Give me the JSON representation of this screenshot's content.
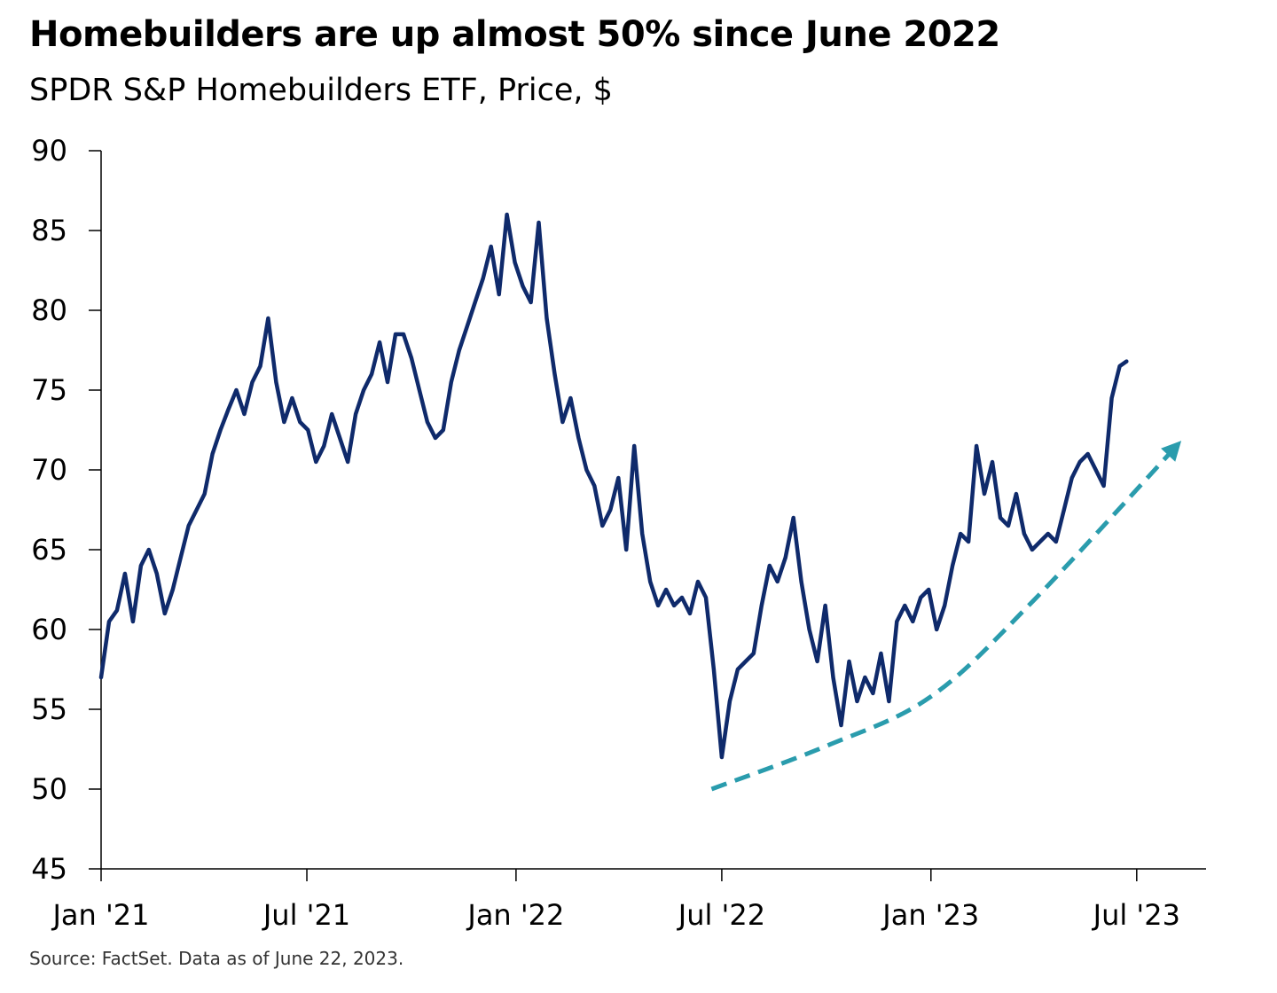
{
  "title": "Homebuilders are up almost 50% since June 2022",
  "subtitle": "SPDR S&P Homebuilders ETF, Price, $",
  "source": "Source: FactSet. Data as of June 22, 2023.",
  "colors": {
    "series": "#0f2a6b",
    "trend_arrow": "#2a9cad",
    "axis": "#000000"
  },
  "chart_data": {
    "type": "line",
    "title": "Homebuilders are up almost 50% since June 2022",
    "subtitle": "SPDR S&P Homebuilders ETF, Price, $",
    "xlabel": "",
    "ylabel": "",
    "ylim": [
      45,
      90
    ],
    "yticks": [
      45,
      50,
      55,
      60,
      65,
      70,
      75,
      80,
      85,
      90
    ],
    "ytick_labels": [
      "45",
      "50",
      "55",
      "60",
      "65",
      "70",
      "75",
      "80",
      "85",
      "90"
    ],
    "x_range": [
      "2021-01-01",
      "2023-08-31"
    ],
    "xticks": [
      "2021-01-01",
      "2021-07-01",
      "2022-01-01",
      "2022-07-01",
      "2023-01-01",
      "2023-07-01"
    ],
    "xtick_labels": [
      "Jan '21",
      "Jul '21",
      "Jan '22",
      "Jul '22",
      "Jan '23",
      "Jul '23"
    ],
    "grid": false,
    "legend": "none",
    "series": [
      {
        "name": "SPDR S&P Homebuilders ETF",
        "x": [
          "2021-01-01",
          "2021-01-08",
          "2021-01-15",
          "2021-01-22",
          "2021-01-29",
          "2021-02-05",
          "2021-02-12",
          "2021-02-19",
          "2021-02-26",
          "2021-03-05",
          "2021-03-12",
          "2021-03-19",
          "2021-03-26",
          "2021-04-02",
          "2021-04-09",
          "2021-04-16",
          "2021-04-23",
          "2021-04-30",
          "2021-05-07",
          "2021-05-14",
          "2021-05-21",
          "2021-05-28",
          "2021-06-04",
          "2021-06-11",
          "2021-06-18",
          "2021-06-25",
          "2021-07-02",
          "2021-07-09",
          "2021-07-16",
          "2021-07-23",
          "2021-07-30",
          "2021-08-06",
          "2021-08-13",
          "2021-08-20",
          "2021-08-27",
          "2021-09-03",
          "2021-09-10",
          "2021-09-17",
          "2021-09-24",
          "2021-10-01",
          "2021-10-08",
          "2021-10-15",
          "2021-10-22",
          "2021-10-29",
          "2021-11-05",
          "2021-11-12",
          "2021-11-19",
          "2021-11-26",
          "2021-12-03",
          "2021-12-10",
          "2021-12-17",
          "2021-12-24",
          "2021-12-31",
          "2022-01-07",
          "2022-01-14",
          "2022-01-21",
          "2022-01-28",
          "2022-02-04",
          "2022-02-11",
          "2022-02-18",
          "2022-02-25",
          "2022-03-04",
          "2022-03-11",
          "2022-03-18",
          "2022-03-25",
          "2022-04-01",
          "2022-04-08",
          "2022-04-15",
          "2022-04-22",
          "2022-04-29",
          "2022-05-06",
          "2022-05-13",
          "2022-05-20",
          "2022-05-27",
          "2022-06-03",
          "2022-06-10",
          "2022-06-17",
          "2022-06-24",
          "2022-07-01",
          "2022-07-08",
          "2022-07-15",
          "2022-07-22",
          "2022-07-29",
          "2022-08-05",
          "2022-08-12",
          "2022-08-19",
          "2022-08-26",
          "2022-09-02",
          "2022-09-09",
          "2022-09-16",
          "2022-09-23",
          "2022-09-30",
          "2022-10-07",
          "2022-10-14",
          "2022-10-21",
          "2022-10-28",
          "2022-11-04",
          "2022-11-11",
          "2022-11-18",
          "2022-11-25",
          "2022-12-02",
          "2022-12-09",
          "2022-12-16",
          "2022-12-23",
          "2022-12-30",
          "2023-01-06",
          "2023-01-13",
          "2023-01-20",
          "2023-01-27",
          "2023-02-03",
          "2023-02-10",
          "2023-02-17",
          "2023-02-24",
          "2023-03-03",
          "2023-03-10",
          "2023-03-17",
          "2023-03-24",
          "2023-03-31",
          "2023-04-07",
          "2023-04-14",
          "2023-04-21",
          "2023-04-28",
          "2023-05-05",
          "2023-05-12",
          "2023-05-19",
          "2023-05-26",
          "2023-06-02",
          "2023-06-09",
          "2023-06-16",
          "2023-06-22"
        ],
        "values": [
          57.0,
          60.5,
          61.2,
          63.5,
          60.5,
          64.0,
          65.0,
          63.5,
          61.0,
          62.5,
          64.5,
          66.5,
          67.5,
          68.5,
          71.0,
          72.5,
          73.8,
          75.0,
          73.5,
          75.5,
          76.5,
          79.5,
          75.5,
          73.0,
          74.5,
          73.0,
          72.5,
          70.5,
          71.5,
          73.5,
          72.0,
          70.5,
          73.5,
          75.0,
          76.0,
          78.0,
          75.5,
          78.5,
          78.5,
          77.0,
          75.0,
          73.0,
          72.0,
          72.5,
          75.5,
          77.5,
          79.0,
          80.5,
          82.0,
          84.0,
          81.0,
          86.0,
          83.0,
          81.5,
          80.5,
          85.5,
          79.5,
          76.0,
          73.0,
          74.5,
          72.0,
          70.0,
          69.0,
          66.5,
          67.5,
          69.5,
          65.0,
          71.5,
          66.0,
          63.0,
          61.5,
          62.5,
          61.5,
          62.0,
          61.0,
          63.0,
          62.0,
          57.5,
          52.0,
          55.5,
          57.5,
          58.0,
          58.5,
          61.5,
          64.0,
          63.0,
          64.5,
          67.0,
          63.0,
          60.0,
          58.0,
          61.5,
          57.0,
          54.0,
          58.0,
          55.5,
          57.0,
          56.0,
          58.5,
          55.5,
          60.5,
          61.5,
          60.5,
          62.0,
          62.5,
          60.0,
          61.5,
          64.0,
          66.0,
          65.5,
          71.5,
          68.5,
          70.5,
          67.0,
          66.5,
          68.5,
          66.0,
          65.0,
          65.5,
          66.0,
          65.5,
          67.5,
          69.5,
          70.5,
          71.0,
          70.0,
          69.0,
          74.5,
          76.5,
          76.8
        ]
      }
    ],
    "annotations": [
      {
        "type": "trend_arrow",
        "description": "dashed upward-curving arrow indicating rising trend",
        "points": [
          {
            "x": "2022-06-22",
            "y": 50.0
          },
          {
            "x": "2022-10-01",
            "y": 52.7
          },
          {
            "x": "2023-01-01",
            "y": 55.8
          },
          {
            "x": "2023-04-01",
            "y": 61.8
          },
          {
            "x": "2023-08-05",
            "y": 71.5
          }
        ]
      }
    ]
  }
}
